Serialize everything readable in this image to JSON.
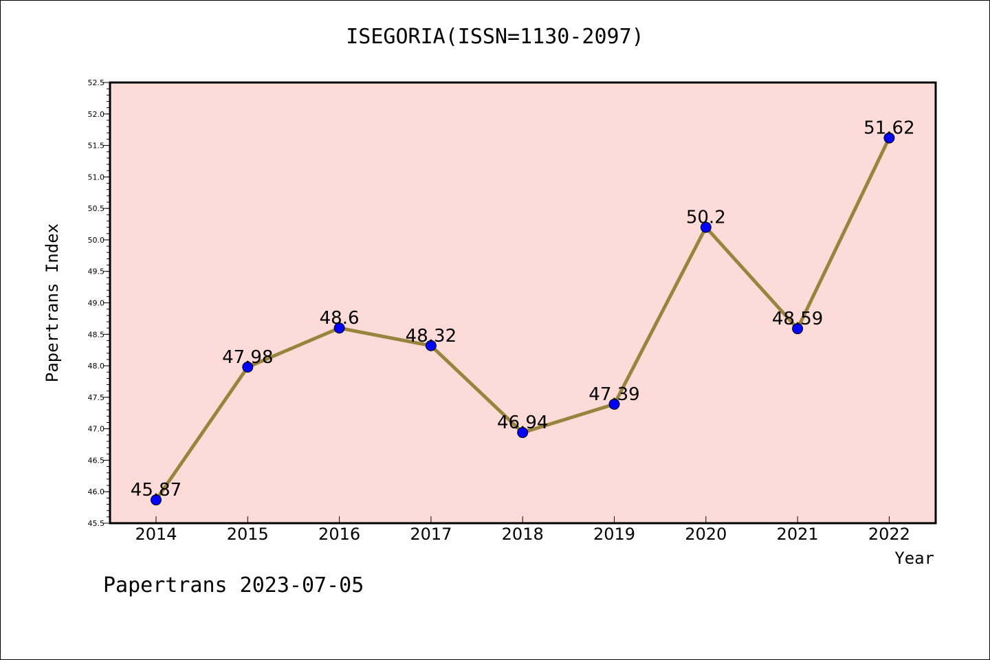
{
  "title": "ISEGORIA(ISSN=1130-2097)",
  "footer": "Papertrans 2023-07-05",
  "colors": {
    "plot_background": "#fddbd8",
    "line": "#98843c",
    "marker": "#0000ff"
  },
  "chart_data": {
    "type": "line",
    "title": "ISEGORIA(ISSN=1130-2097)",
    "xlabel": "Year",
    "ylabel": "Papertrans Index",
    "categories": [
      "2014",
      "2015",
      "2016",
      "2017",
      "2018",
      "2019",
      "2020",
      "2021",
      "2022"
    ],
    "series": [
      {
        "values": [
          45.87,
          47.98,
          48.6,
          48.32,
          46.94,
          47.39,
          50.2,
          48.59,
          51.62
        ],
        "labels": [
          "45.87",
          "47.98",
          "48.6",
          "48.32",
          "46.94",
          "47.39",
          "50.2",
          "48.59",
          "51.62"
        ]
      }
    ],
    "ylim": [
      45.5,
      52.5
    ],
    "yticks": [
      "45.5",
      "46.0",
      "46.5",
      "47.0",
      "47.5",
      "48.0",
      "48.5",
      "49.0",
      "49.5",
      "50.0",
      "50.5",
      "51.0",
      "51.5",
      "52.0",
      "52.5"
    ],
    "grid": false,
    "legend": "none"
  }
}
